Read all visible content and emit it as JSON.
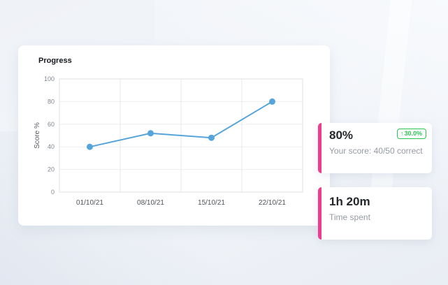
{
  "background": {
    "color": "#EFF2F7"
  },
  "progress_card": {
    "title": "Progress"
  },
  "chart_data": {
    "type": "line",
    "title": "Progress",
    "categories": [
      "01/10/21",
      "08/10/21",
      "15/10/21",
      "22/10/21"
    ],
    "series": [
      {
        "name": "Score %",
        "values": [
          40,
          52,
          48,
          80
        ]
      }
    ],
    "xlabel": "",
    "ylabel": "Score %",
    "ylim": [
      0,
      100
    ],
    "yticks": [
      0,
      20,
      40,
      60,
      80,
      100
    ],
    "grid": true,
    "legend": "none",
    "line_color": "#56A5DA",
    "point_radius": 4.5
  },
  "score_card": {
    "value": "80%",
    "badge": {
      "arrow": "↑",
      "value": "30.0%",
      "color": "#2EC454"
    },
    "subtitle": "Your score: 40/50 correct",
    "accent_color": "#EE3D8E"
  },
  "time_card": {
    "value": "1h 20m",
    "subtitle": "Time spent",
    "accent_color": "#EE3D8E"
  }
}
